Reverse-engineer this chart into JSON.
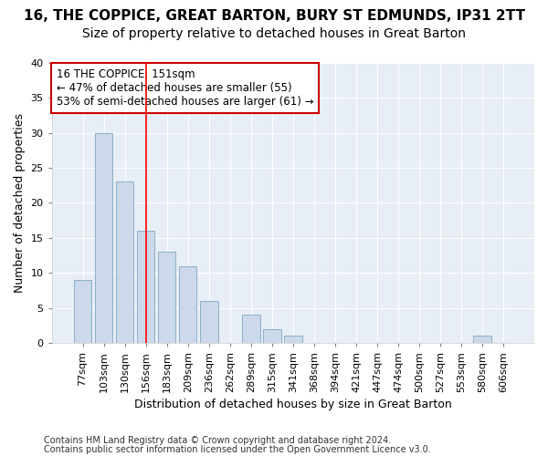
{
  "title1": "16, THE COPPICE, GREAT BARTON, BURY ST EDMUNDS, IP31 2TT",
  "title2": "Size of property relative to detached houses in Great Barton",
  "xlabel": "Distribution of detached houses by size in Great Barton",
  "ylabel": "Number of detached properties",
  "categories": [
    "77sqm",
    "103sqm",
    "130sqm",
    "156sqm",
    "183sqm",
    "209sqm",
    "236sqm",
    "262sqm",
    "289sqm",
    "315sqm",
    "341sqm",
    "368sqm",
    "394sqm",
    "421sqm",
    "447sqm",
    "474sqm",
    "500sqm",
    "527sqm",
    "553sqm",
    "580sqm",
    "606sqm"
  ],
  "values": [
    9,
    30,
    23,
    16,
    13,
    11,
    6,
    0,
    4,
    2,
    1,
    0,
    0,
    0,
    0,
    0,
    0,
    0,
    0,
    1,
    0
  ],
  "bar_color": "#ccd9ea",
  "bar_edge_color": "#8aafc8",
  "red_line_x": 3.0,
  "annotation_line1": "16 THE COPPICE: 151sqm",
  "annotation_line2": "← 47% of detached houses are smaller (55)",
  "annotation_line3": "53% of semi-detached houses are larger (61) →",
  "annotation_box_color": "#ffffff",
  "annotation_box_edge": "#cc0000",
  "ylim": [
    0,
    40
  ],
  "yticks": [
    0,
    5,
    10,
    15,
    20,
    25,
    30,
    35,
    40
  ],
  "footnote1": "Contains HM Land Registry data © Crown copyright and database right 2024.",
  "footnote2": "Contains public sector information licensed under the Open Government Licence v3.0.",
  "bg_color": "#ffffff",
  "plot_bg_color": "#e8eef5",
  "grid_color": "#ffffff",
  "title1_fontsize": 11,
  "title2_fontsize": 10,
  "axis_fontsize": 9,
  "tick_fontsize": 8,
  "footnote_fontsize": 7
}
